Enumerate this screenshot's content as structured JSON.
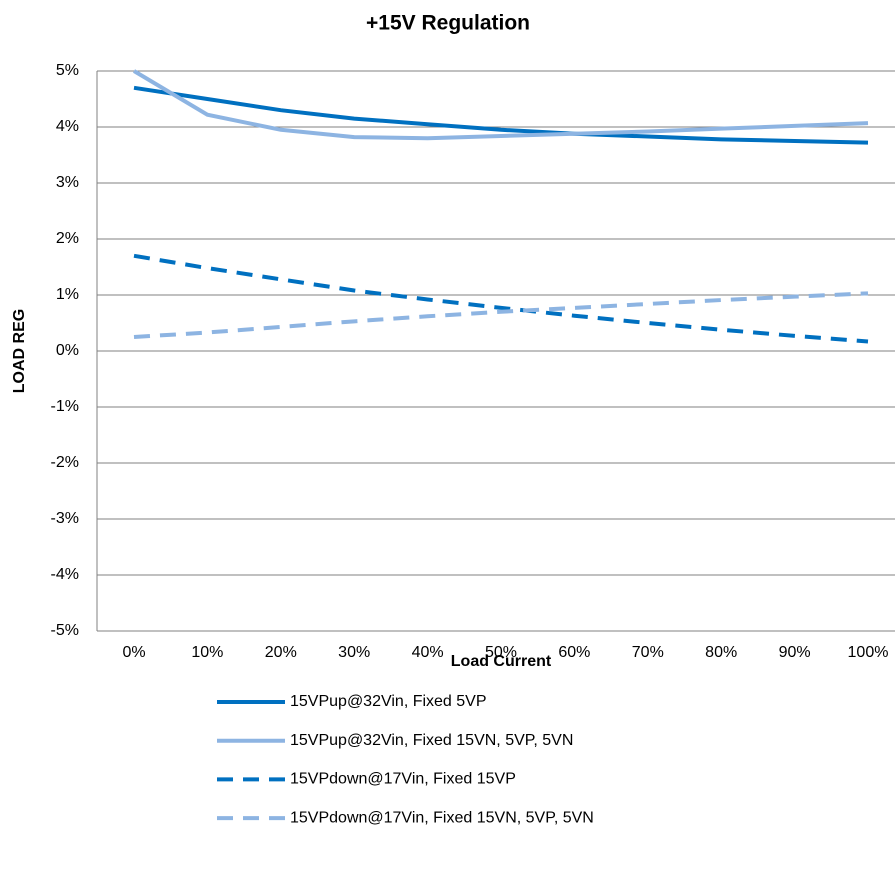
{
  "chart_data": {
    "type": "line",
    "title": "+15V Regulation",
    "x_label": "Load Current",
    "y_label": "LOAD REG",
    "categories": [
      "0%",
      "10%",
      "20%",
      "30%",
      "40%",
      "50%",
      "60%",
      "70%",
      "80%",
      "90%",
      "100%"
    ],
    "ylim": [
      -5,
      5
    ],
    "yticks": [
      {
        "value": -5,
        "label": "-5%"
      },
      {
        "value": -4,
        "label": "-4%"
      },
      {
        "value": -3,
        "label": "-3%"
      },
      {
        "value": -2,
        "label": "-2%"
      },
      {
        "value": -1,
        "label": "-1%"
      },
      {
        "value": 0,
        "label": "0%"
      },
      {
        "value": 1,
        "label": "1%"
      },
      {
        "value": 2,
        "label": "2%"
      },
      {
        "value": 3,
        "label": "3%"
      },
      {
        "value": 4,
        "label": "4%"
      },
      {
        "value": 5,
        "label": "5%"
      }
    ],
    "grid": true,
    "series": [
      {
        "name": "15VPup@32Vin, Fixed 5VP",
        "color": "#0070c0",
        "dashed": false,
        "values": [
          4.7,
          4.5,
          4.3,
          4.15,
          4.05,
          3.95,
          3.88,
          3.83,
          3.78,
          3.75,
          3.72
        ]
      },
      {
        "name": "15VPup@32Vin, Fixed 15VN, 5VP, 5VN",
        "color": "#8db4e2",
        "dashed": false,
        "values": [
          5.0,
          4.22,
          3.95,
          3.82,
          3.8,
          3.84,
          3.88,
          3.92,
          3.97,
          4.02,
          4.07
        ]
      },
      {
        "name": "15VPdown@17Vin, Fixed 15VP",
        "color": "#0070c0",
        "dashed": true,
        "values": [
          1.7,
          1.48,
          1.28,
          1.08,
          0.92,
          0.77,
          0.63,
          0.5,
          0.38,
          0.27,
          0.17
        ]
      },
      {
        "name": "15VPdown@17Vin, Fixed 15VN, 5VP, 5VN",
        "color": "#8db4e2",
        "dashed": true,
        "values": [
          0.25,
          0.33,
          0.43,
          0.53,
          0.62,
          0.7,
          0.77,
          0.84,
          0.91,
          0.97,
          1.03
        ]
      }
    ],
    "legend": "bottom"
  }
}
